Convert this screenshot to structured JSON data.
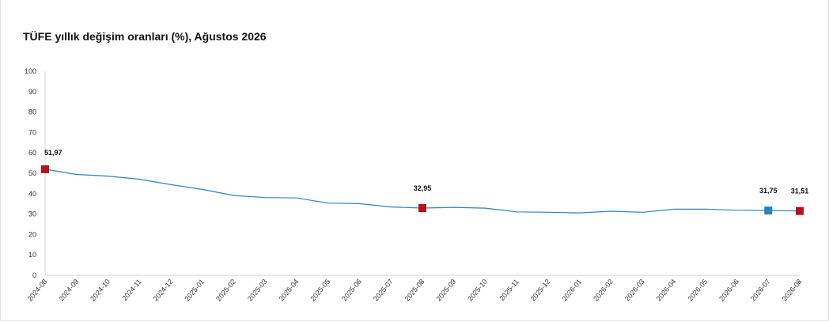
{
  "chart_data": {
    "type": "line",
    "title": "TÜFE yıllık değişim oranları (%), Ağustos 2026",
    "xlabel": "",
    "ylabel": "",
    "ylim": [
      0,
      100
    ],
    "yticks": [
      "0",
      "10",
      "20",
      "30",
      "40",
      "50",
      "60",
      "70",
      "80",
      "90",
      "100"
    ],
    "grid": false,
    "categories": [
      "2024-08",
      "2024-09",
      "2024-10",
      "2024-11",
      "2024-12",
      "2025-01",
      "2025-02",
      "2025-03",
      "2025-04",
      "2025-05",
      "2025-06",
      "2025-07",
      "2025-08",
      "2025-09",
      "2025-10",
      "2025-11",
      "2025-12",
      "2026-01",
      "2026-02",
      "2026-03",
      "2026-04",
      "2026-05",
      "2026-06",
      "2026-07",
      "2026-08"
    ],
    "series": [
      {
        "values": [
          51.97,
          49.4,
          48.6,
          47.1,
          44.4,
          42.1,
          39.1,
          38.1,
          37.9,
          35.4,
          35.1,
          33.5,
          32.95,
          33.3,
          32.9,
          31.1,
          30.9,
          30.6,
          31.4,
          30.9,
          32.4,
          32.4,
          31.9,
          31.75,
          31.51
        ],
        "color": "#2a84c0"
      }
    ],
    "markers": [
      {
        "index": 0,
        "label": "51,97",
        "color": "#b5121b"
      },
      {
        "index": 12,
        "label": "32,95",
        "color": "#b5121b"
      },
      {
        "index": 23,
        "label": "31,75",
        "color": "#2a84c0"
      },
      {
        "index": 24,
        "label": "31,51",
        "color": "#b5121b"
      }
    ]
  }
}
